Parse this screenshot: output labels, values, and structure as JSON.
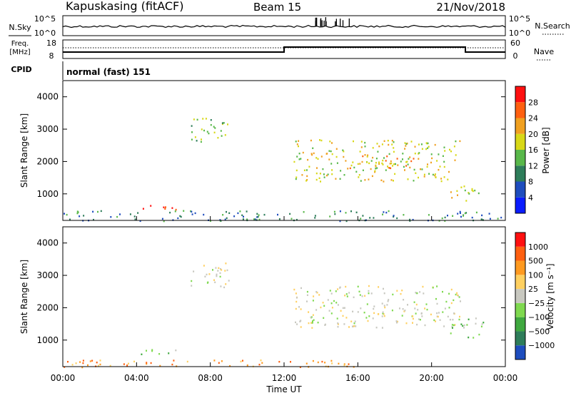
{
  "header": {
    "station": "Kapuskasing (fitACF)",
    "beam": "Beam 15",
    "date": "21/Nov/2018"
  },
  "noise_panel": {
    "left_label": "N.Sky",
    "right_label": "N.Search",
    "left_ticks": [
      "10^5",
      "10^0"
    ],
    "right_ticks": [
      "10^5",
      "10^0"
    ]
  },
  "freq_panel": {
    "left_label_line1": "Freq.",
    "left_label_line2": "[MHz]",
    "right_label": "Nave",
    "left_ticks": [
      "18",
      "8"
    ],
    "right_ticks": [
      "60",
      "0"
    ],
    "freq_switch_times": [
      "12:00",
      "21:50"
    ]
  },
  "cpid_panel": {
    "label": "CPID",
    "value": "normal (fast) 151"
  },
  "chart_data": [
    {
      "type": "heatmap",
      "name": "Power",
      "ylabel": "Slant Range [km]",
      "yticks": [
        "1000",
        "2000",
        "3000",
        "4000"
      ],
      "ylim": [
        180,
        4500
      ],
      "xlim_hours": [
        0,
        24
      ],
      "colorbar": {
        "label": "Power [dB]",
        "ticks": [
          "4",
          "8",
          "12",
          "16",
          "20",
          "24",
          "28"
        ],
        "colors": [
          "#0a1cff",
          "#1e4dbe",
          "#2e7d5a",
          "#59b84a",
          "#d8d817",
          "#f0a020",
          "#ff6010",
          "#ff1010"
        ]
      },
      "regions": [
        {
          "t0": 6.9,
          "t1": 9.0,
          "r0": 2600,
          "r1": 3400,
          "level": 3
        },
        {
          "t0": 4.2,
          "t1": 6.3,
          "r0": 500,
          "r1": 700,
          "level": 7
        },
        {
          "t0": 12.5,
          "t1": 21.6,
          "r0": 1400,
          "r1": 2700,
          "level": 4
        },
        {
          "t0": 15.5,
          "t1": 19.0,
          "r0": 1800,
          "r1": 2200,
          "level": 5
        },
        {
          "t0": 21.0,
          "t1": 22.8,
          "r0": 800,
          "r1": 1300,
          "level": 4
        },
        {
          "t0": 0.0,
          "t1": 24.0,
          "r0": 180,
          "r1": 500,
          "level": 2
        }
      ]
    },
    {
      "type": "heatmap",
      "name": "Velocity",
      "ylabel": "Slant Range [km]",
      "yticks": [
        "1000",
        "2000",
        "3000",
        "4000"
      ],
      "ylim": [
        180,
        4500
      ],
      "xlim_hours": [
        0,
        24
      ],
      "colorbar": {
        "label": "Velocity [m s⁻¹]",
        "ticks": [
          "1000",
          "500",
          "100",
          "25",
          "−25",
          "−100",
          "−500",
          "−1000"
        ],
        "colors": [
          "#1e4dbe",
          "#2e7d5a",
          "#3fa83f",
          "#7fd94f",
          "#c8c8c0",
          "#ffd060",
          "#ff9a20",
          "#ff6010",
          "#ff1010"
        ]
      },
      "regions": [
        {
          "t0": 6.9,
          "t1": 9.0,
          "r0": 2600,
          "r1": 3400,
          "level": 4
        },
        {
          "t0": 4.2,
          "t1": 6.3,
          "r0": 550,
          "r1": 750,
          "level": 3
        },
        {
          "t0": 12.5,
          "t1": 21.6,
          "r0": 1400,
          "r1": 2700,
          "level": 4
        },
        {
          "t0": 21.0,
          "t1": 22.8,
          "r0": 1100,
          "r1": 1700,
          "level": 3
        },
        {
          "t0": 0.0,
          "t1": 16.0,
          "r0": 180,
          "r1": 400,
          "level": 6
        }
      ]
    }
  ],
  "x_axis": {
    "ticks": [
      "00:00",
      "04:00",
      "08:00",
      "12:00",
      "16:00",
      "20:00",
      "00:00"
    ],
    "label": "Time UT"
  }
}
